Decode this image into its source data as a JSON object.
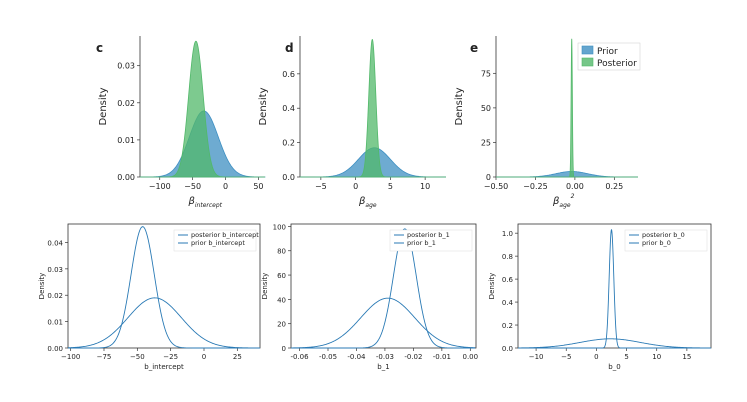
{
  "chart_data": [
    {
      "type": "area",
      "panel": "c",
      "xlabel": "β",
      "xlabel_sub": "intercept",
      "xlabel_sup": "",
      "ylabel": "Density",
      "xlim": [
        -130,
        60
      ],
      "ylim": [
        0,
        0.038
      ],
      "xticks": [
        -100,
        -50,
        0,
        50
      ],
      "yticks": [
        0.0,
        0.01,
        0.02,
        0.03
      ],
      "ytick_labels": [
        "0.00",
        "0.01",
        "0.02",
        "0.03"
      ],
      "series": [
        {
          "name": "Prior",
          "color": "#3d8fc2",
          "mean": -33,
          "sd": 22,
          "peak": 0.0178
        },
        {
          "name": "Posterior",
          "color": "#52b86a",
          "mean": -45,
          "sd": 11,
          "peak": 0.0366
        }
      ]
    },
    {
      "type": "area",
      "panel": "d",
      "xlabel": "β",
      "xlabel_sub": "age",
      "xlabel_sup": "",
      "ylabel": "Density",
      "xlim": [
        -8,
        13
      ],
      "ylim": [
        0,
        0.82
      ],
      "xticks": [
        -5,
        0,
        5,
        10
      ],
      "yticks": [
        0.0,
        0.2,
        0.4,
        0.6
      ],
      "ytick_labels": [
        "0.0",
        "0.2",
        "0.4",
        "0.6"
      ],
      "series": [
        {
          "name": "Prior",
          "color": "#3d8fc2",
          "mean": 2.7,
          "sd": 2.3,
          "peak": 0.17
        },
        {
          "name": "Posterior",
          "color": "#52b86a",
          "mean": 2.4,
          "sd": 0.5,
          "peak": 0.8
        }
      ]
    },
    {
      "type": "area",
      "panel": "e",
      "xlabel": "β",
      "xlabel_sub": "age",
      "xlabel_sup": "2",
      "ylabel": "Density",
      "xlim": [
        -0.5,
        0.4
      ],
      "ylim": [
        0,
        102
      ],
      "xticks": [
        -0.5,
        -0.25,
        0.0,
        0.25
      ],
      "yticks": [
        0,
        25,
        50,
        75
      ],
      "ytick_labels": [
        "0",
        "25",
        "50",
        "75"
      ],
      "series": [
        {
          "name": "Prior",
          "color": "#3d8fc2",
          "mean": -0.02,
          "sd": 0.1,
          "peak": 4
        },
        {
          "name": "Posterior",
          "color": "#52b86a",
          "mean": -0.02,
          "sd": 0.004,
          "peak": 100
        }
      ],
      "legend": {
        "position": "top-right",
        "entries": [
          "Prior",
          "Posterior"
        ]
      }
    },
    {
      "type": "line",
      "xlabel": "b_intercept",
      "ylabel": "Density",
      "xlim": [
        -102,
        42
      ],
      "ylim": [
        0,
        0.047
      ],
      "xticks": [
        -100,
        -75,
        -50,
        -25,
        0,
        25
      ],
      "yticks": [
        0.0,
        0.01,
        0.02,
        0.03,
        0.04
      ],
      "ytick_labels": [
        "0.00",
        "0.01",
        "0.02",
        "0.03",
        "0.04"
      ],
      "series": [
        {
          "name": "posterior b_intercept",
          "color": "#2a7ab5",
          "mean": -46,
          "sd": 8.7,
          "peak": 0.046
        },
        {
          "name": "prior b_intercept",
          "color": "#2a7ab5",
          "mean": -37,
          "sd": 20,
          "peak": 0.019
        }
      ],
      "legend": {
        "position": "top-right"
      }
    },
    {
      "type": "line",
      "xlabel": "b_1",
      "ylabel": "Density",
      "xlim": [
        -0.063,
        0.002
      ],
      "ylim": [
        0,
        102
      ],
      "xticks": [
        -0.06,
        -0.05,
        -0.04,
        -0.03,
        -0.02,
        -0.01,
        0.0
      ],
      "ytick_labels": [
        "-0.06",
        "-0.05",
        "-0.04",
        "-0.03",
        "-0.02",
        "-0.01",
        "0.00"
      ],
      "yticks": [
        0,
        20,
        40,
        60,
        80,
        100
      ],
      "ytick_labels_y": [
        "0",
        "20",
        "40",
        "60",
        "80",
        "100"
      ],
      "series": [
        {
          "name": "posterior b_1",
          "color": "#2a7ab5",
          "mean": -0.023,
          "sd": 0.004,
          "peak": 98
        },
        {
          "name": "prior b_1",
          "color": "#2a7ab5",
          "mean": -0.029,
          "sd": 0.0095,
          "peak": 41
        }
      ],
      "legend": {
        "position": "top-right"
      }
    },
    {
      "type": "line",
      "xlabel": "b_0",
      "ylabel": "Density",
      "xlim": [
        -13,
        19
      ],
      "ylim": [
        0,
        1.08
      ],
      "xticks": [
        -10,
        -5,
        0,
        5,
        10,
        15
      ],
      "yticks": [
        0.0,
        0.2,
        0.4,
        0.6,
        0.8,
        1.0
      ],
      "ytick_labels": [
        "0.0",
        "0.2",
        "0.4",
        "0.6",
        "0.8",
        "1.0"
      ],
      "series": [
        {
          "name": "posterior b_0",
          "color": "#2a7ab5",
          "mean": 2.5,
          "sd": 0.38,
          "peak": 1.03
        },
        {
          "name": "prior b_0",
          "color": "#2a7ab5",
          "mean": 2.3,
          "sd": 5,
          "peak": 0.08
        }
      ],
      "legend": {
        "position": "top-right"
      }
    }
  ],
  "legend_top": {
    "prior_label": "Prior",
    "posterior_label": "Posterior"
  }
}
